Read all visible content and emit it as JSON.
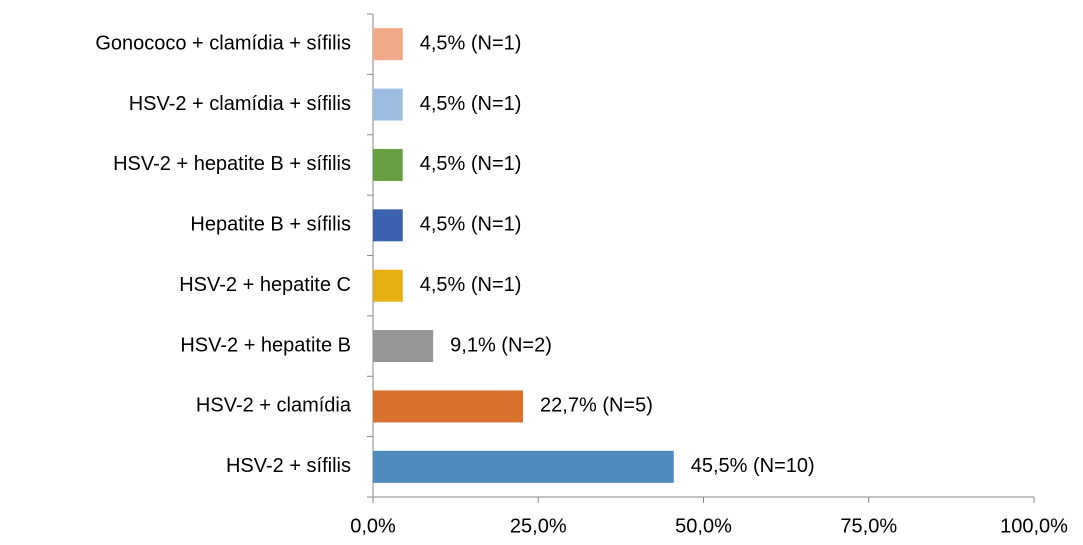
{
  "chart_data": {
    "type": "hbar",
    "categories": [
      "Gonococo + clamídia + sífilis",
      "HSV-2 + clamídia + sífilis",
      "HSV-2 + hepatite B + sífilis",
      "Hepatite B + sífilis",
      "HSV-2 + hepatite C",
      "HSV-2 + hepatite B",
      "HSV-2 + clamídia",
      "HSV-2 + sífilis"
    ],
    "values": [
      4.5,
      4.5,
      4.5,
      4.5,
      4.5,
      9.1,
      22.7,
      45.5
    ],
    "value_labels": [
      "4,5% (N=1)",
      "4,5% (N=1)",
      "4,5% (N=1)",
      "4,5% (N=1)",
      "4,5% (N=1)",
      "9,1% (N=2)",
      "22,7% (N=5)",
      "45,5% (N=10)"
    ],
    "colors": [
      "#f2a98a",
      "#9dbce0",
      "#66a043",
      "#3a62ad",
      "#e6b012",
      "#969696",
      "#d8702e",
      "#4f8bbf"
    ],
    "xlim": [
      0,
      100
    ],
    "xticks": [
      {
        "value": 0,
        "label": "0,0%"
      },
      {
        "value": 25,
        "label": "25,0%"
      },
      {
        "value": 50,
        "label": "50,0%"
      },
      {
        "value": 75,
        "label": "75,0%"
      },
      {
        "value": 100,
        "label": "100,0%"
      }
    ]
  }
}
